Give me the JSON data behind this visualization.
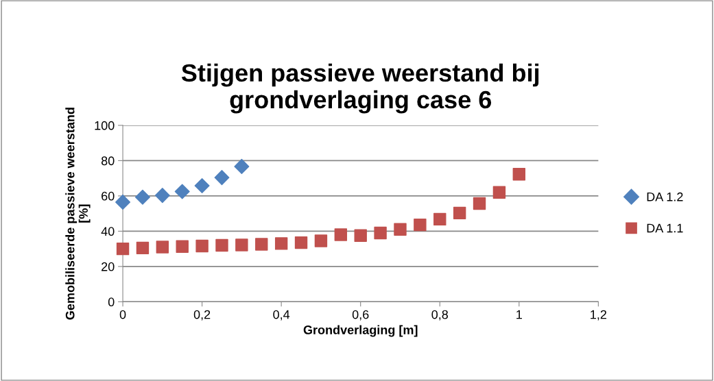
{
  "chart_data": {
    "type": "scatter",
    "title": "Stijgen passieve weerstand bij\ngrondverlaging case 6",
    "xlabel": "Grondverlaging [m]",
    "ylabel": "Gemobiliseerde passieve weerstand\n[%]",
    "series": [
      {
        "name": "DA 1.2",
        "color": "#4f81bd",
        "marker": "diamond",
        "x": [
          0,
          0.05,
          0.1,
          0.15,
          0.2,
          0.25,
          0.3
        ],
        "values": [
          56.5,
          59.3,
          60.3,
          62.5,
          65.8,
          70.4,
          76.7
        ]
      },
      {
        "name": "DA 1.1",
        "color": "#c0504d",
        "marker": "square",
        "x": [
          0,
          0.05,
          0.1,
          0.15,
          0.2,
          0.25,
          0.3,
          0.35,
          0.4,
          0.45,
          0.5,
          0.55,
          0.6,
          0.65,
          0.7,
          0.75,
          0.8,
          0.85,
          0.9,
          0.95,
          1
        ],
        "values": [
          30,
          30.5,
          31,
          31.3,
          31.6,
          32,
          32.2,
          32.6,
          33,
          33.5,
          34.5,
          38,
          37.5,
          39,
          41,
          43.6,
          46.8,
          50.3,
          55.7,
          62,
          72.3
        ]
      }
    ],
    "xlim": [
      0,
      1.2
    ],
    "xticks": [
      {
        "value": 0,
        "label": "0"
      },
      {
        "value": 0.2,
        "label": "0,2"
      },
      {
        "value": 0.4,
        "label": "0,4"
      },
      {
        "value": 0.6,
        "label": "0,6"
      },
      {
        "value": 0.8,
        "label": "0,8"
      },
      {
        "value": 1,
        "label": "1"
      },
      {
        "value": 1.2,
        "label": "1,2"
      }
    ],
    "ylim": [
      0,
      100
    ],
    "yticks": [
      0,
      20,
      40,
      60,
      80,
      100
    ],
    "grid": "y",
    "legend": "right"
  }
}
